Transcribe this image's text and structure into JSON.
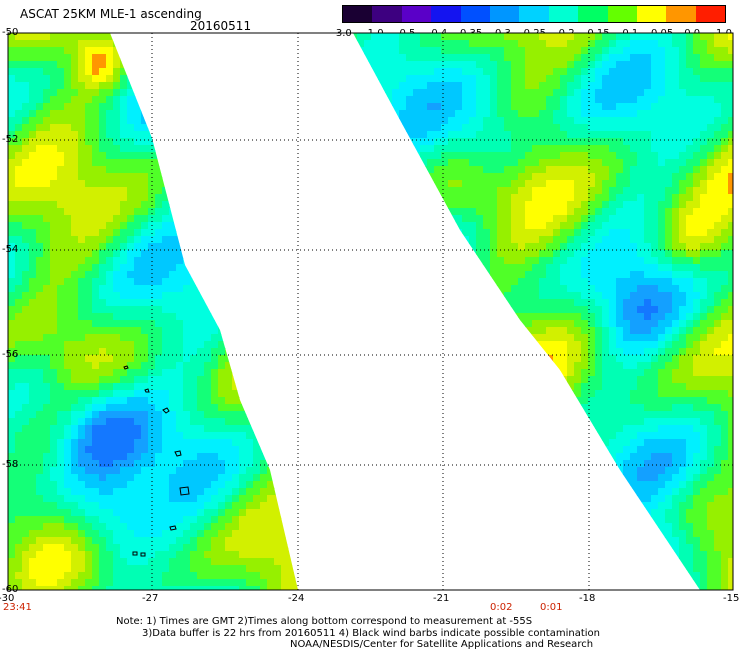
{
  "header": {
    "title": "ASCAT 25KM MLE-1 ascending",
    "date": "20160511"
  },
  "colorbar": {
    "labels": [
      "-3.0",
      "-1.0",
      "-0.5",
      "-0.4",
      "-0.35",
      "-0.3",
      "-0.25",
      "-0.2",
      "-0.15",
      "-0.1",
      "-0.05",
      "0.0",
      "1.0"
    ],
    "colors": [
      "#1a0033",
      "#3d0080",
      "#5a00c8",
      "#1414f0",
      "#0050ff",
      "#0096ff",
      "#00d2ff",
      "#00ffd2",
      "#00ff64",
      "#64ff00",
      "#ffff00",
      "#ff9600",
      "#ff1e00"
    ]
  },
  "axes": {
    "lat_labels": [
      "-50",
      "-52",
      "-54",
      "-56",
      "-58",
      "-60"
    ],
    "lon_labels": [
      "-30",
      "-27",
      "-24",
      "-21",
      "-18",
      "-15"
    ]
  },
  "times": [
    "23:41",
    "0:02",
    "0:01"
  ],
  "notes": {
    "line1": "Note: 1) Times are GMT 2)Times along bottom correspond to measurement at -55S",
    "line2": "3)Data buffer is 22 hrs from 20160511 4) Black wind barbs indicate possible contamination",
    "line3": "NOAA/NESDIS/Center for Satellite Applications and Research"
  }
}
